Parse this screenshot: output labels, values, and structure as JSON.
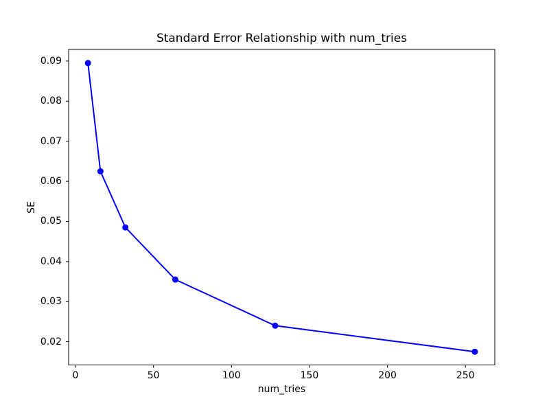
{
  "chart_data": {
    "type": "line",
    "title": "Standard Error Relationship with num_tries",
    "xlabel": "num_tries",
    "ylabel": "SE",
    "x": [
      8,
      16,
      32,
      64,
      128,
      256
    ],
    "y": [
      0.0895,
      0.0625,
      0.0485,
      0.0355,
      0.024,
      0.0175
    ],
    "xticks": [
      0,
      50,
      100,
      150,
      200,
      250
    ],
    "xtick_labels": [
      "0",
      "50",
      "100",
      "150",
      "200",
      "250"
    ],
    "yticks": [
      0.02,
      0.03,
      0.04,
      0.05,
      0.06,
      0.07,
      0.08,
      0.09
    ],
    "ytick_labels": [
      "0.02",
      "0.03",
      "0.04",
      "0.05",
      "0.06",
      "0.07",
      "0.08",
      "0.09"
    ],
    "xlim": [
      -4.4,
      268.8
    ],
    "ylim": [
      0.0142,
      0.0929
    ],
    "grid": false,
    "legend": null,
    "line_color": "#0000ff",
    "marker": "o",
    "axis_color": "#000000",
    "background_color": "#ffffff"
  }
}
